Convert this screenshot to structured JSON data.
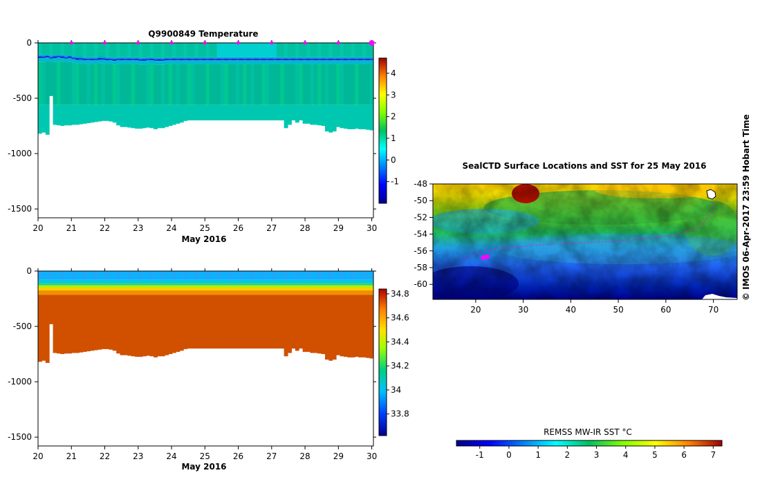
{
  "chart_data": [
    {
      "type": "heatmap",
      "title": "Q9900849  Temperature",
      "xlabel": "May 2016",
      "xlim": [
        20,
        30.05
      ],
      "ylim": [
        -1580,
        0
      ],
      "x_ticks": [
        "20",
        "21",
        "22",
        "23",
        "24",
        "25",
        "26",
        "27",
        "28",
        "29",
        "30"
      ],
      "y_ticks": [
        "0",
        "-500",
        "-1000",
        "-1500"
      ],
      "colorbar": {
        "min": -2,
        "max": 4.7,
        "ticks": [
          "-1",
          "0",
          "1",
          "2",
          "3",
          "4"
        ]
      },
      "profile_markers_x": [
        21,
        22,
        23,
        24,
        25,
        26,
        27,
        28,
        29,
        30
      ],
      "profiles": {
        "x_start": 20,
        "x_end": 30.05,
        "bottom_depth": [
          820,
          810,
          830,
          480,
          740,
          745,
          750,
          745,
          745,
          740,
          740,
          735,
          730,
          725,
          720,
          715,
          710,
          705,
          705,
          710,
          720,
          745,
          760,
          760,
          765,
          770,
          775,
          775,
          770,
          765,
          770,
          780,
          770,
          770,
          760,
          750,
          740,
          730,
          720,
          705,
          700,
          700,
          700,
          700,
          700,
          700,
          700,
          700,
          700,
          700,
          700,
          700,
          700,
          700,
          700,
          700,
          700,
          700,
          700,
          700,
          700,
          700,
          700,
          700,
          700,
          700,
          770,
          740,
          700,
          720,
          700,
          730,
          730,
          740,
          740,
          745,
          750,
          800,
          810,
          800,
          760,
          770,
          775,
          780,
          780,
          775,
          780,
          780,
          785,
          790
        ],
        "thermocline_depth": [
          130,
          130,
          125,
          135,
          130,
          125,
          130,
          135,
          130,
          140,
          145,
          145,
          150,
          150,
          150,
          150,
          145,
          145,
          150,
          150,
          155,
          150,
          150,
          150,
          150,
          150,
          150,
          155,
          155,
          150,
          150,
          155,
          155,
          155,
          150,
          150,
          150,
          150,
          150,
          150,
          150,
          150,
          150,
          150,
          150,
          150,
          150,
          150,
          150,
          150,
          150,
          150,
          150,
          150,
          150,
          150,
          150,
          150,
          150,
          150,
          150,
          150,
          150,
          150,
          150,
          150,
          150,
          150,
          150,
          150,
          150,
          150,
          150,
          150,
          150,
          150,
          150,
          150,
          150,
          150,
          150,
          150,
          150,
          150,
          150,
          150,
          150,
          150,
          150,
          150
        ]
      }
    },
    {
      "type": "heatmap",
      "title": "",
      "xlabel": "May 2016",
      "xlim": [
        20,
        30.05
      ],
      "ylim": [
        -1580,
        0
      ],
      "x_ticks": [
        "20",
        "21",
        "22",
        "23",
        "24",
        "25",
        "26",
        "27",
        "28",
        "29",
        "30"
      ],
      "y_ticks": [
        "0",
        "-500",
        "-1000",
        "-1500"
      ],
      "colorbar": {
        "min": 33.62,
        "max": 34.84,
        "ticks": [
          "33.8",
          "34",
          "34.2",
          "34.4",
          "34.6",
          "34.8"
        ]
      }
    },
    {
      "type": "heatmap",
      "title": "SealCTD Surface Locations and SST for 25 May 2016",
      "xlim": [
        11,
        75
      ],
      "ylim": [
        -61.8,
        -48
      ],
      "x_ticks": [
        "20",
        "30",
        "40",
        "50",
        "60",
        "70"
      ],
      "y_ticks": [
        "-48",
        "-50",
        "-52",
        "-54",
        "-56",
        "-58",
        "-60"
      ],
      "seal_track": [
        [
          17,
          -57
        ],
        [
          19,
          -56.6
        ],
        [
          21,
          -56.2
        ],
        [
          24,
          -55.8
        ],
        [
          28,
          -55.6
        ],
        [
          33,
          -55.3
        ],
        [
          40,
          -55.1
        ],
        [
          48,
          -54.9
        ],
        [
          55,
          -54.6
        ],
        [
          62,
          -54.1
        ],
        [
          67,
          -53.2
        ],
        [
          70,
          -51.2
        ],
        [
          70,
          -50.2
        ]
      ],
      "seal_positions": [
        [
          21.6,
          -56.8
        ],
        [
          22.4,
          -56.7
        ]
      ],
      "colorbar": {
        "label": "REMSS MW-IR SST °C",
        "min": -1.8,
        "max": 7.3,
        "ticks": [
          "-1",
          "0",
          "1",
          "2",
          "3",
          "4",
          "5",
          "6",
          "7"
        ]
      }
    }
  ],
  "watermark": "© IMOS 06-Apr-2017 23:59 Hobart Time",
  "colors": {
    "marker": "#ff00ff",
    "track": "#ff00ff"
  }
}
